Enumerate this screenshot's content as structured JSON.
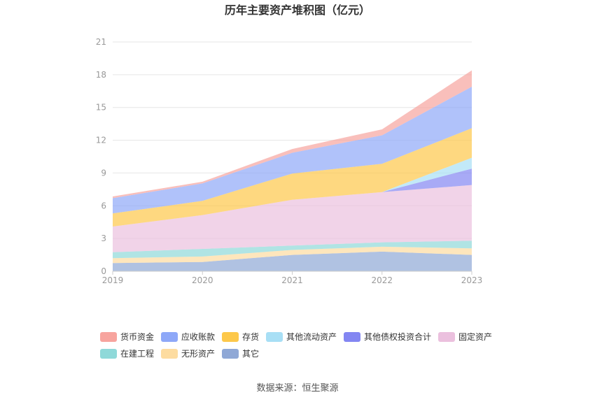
{
  "chart_data": {
    "type": "area",
    "stacked": true,
    "title": "历年主要资产堆积图（亿元）",
    "x": [
      "2019",
      "2020",
      "2021",
      "2022",
      "2023"
    ],
    "ylim": [
      0,
      21
    ],
    "yticks": [
      0,
      3,
      6,
      9,
      12,
      15,
      18,
      21
    ],
    "grid": true,
    "legend_position": "bottom",
    "series": [
      {
        "name": "其它",
        "color": "#8fa8d6",
        "values": [
          0.75,
          0.85,
          1.5,
          1.8,
          1.5
        ]
      },
      {
        "name": "无形资产",
        "color": "#fddca0",
        "values": [
          0.45,
          0.5,
          0.45,
          0.45,
          0.6
        ]
      },
      {
        "name": "在建工程",
        "color": "#8fd9d9",
        "values": [
          0.55,
          0.7,
          0.4,
          0.4,
          0.7
        ]
      },
      {
        "name": "固定资产",
        "color": "#ebc0de",
        "values": [
          2.35,
          3.1,
          4.2,
          4.6,
          5.1
        ]
      },
      {
        "name": "其他债权投资合计",
        "color": "#8386f2",
        "values": [
          0,
          0,
          0,
          0,
          1.5
        ]
      },
      {
        "name": "其他流动资产",
        "color": "#a8dff5",
        "values": [
          0,
          0,
          0,
          0,
          1.0
        ]
      },
      {
        "name": "存货",
        "color": "#fdc84a",
        "values": [
          1.2,
          1.3,
          2.4,
          2.6,
          2.7
        ]
      },
      {
        "name": "应收账款",
        "color": "#8ea8f8",
        "values": [
          1.4,
          1.6,
          1.9,
          2.6,
          3.8
        ]
      },
      {
        "name": "货币资金",
        "color": "#f7a49e",
        "values": [
          0.15,
          0.15,
          0.35,
          0.55,
          1.5
        ]
      }
    ],
    "legend_order": [
      "货币资金",
      "应收账款",
      "存货",
      "其他流动资产",
      "其他债权投资合计",
      "固定资产",
      "在建工程",
      "无形资产",
      "其它"
    ]
  },
  "source": "数据来源：恒生聚源"
}
